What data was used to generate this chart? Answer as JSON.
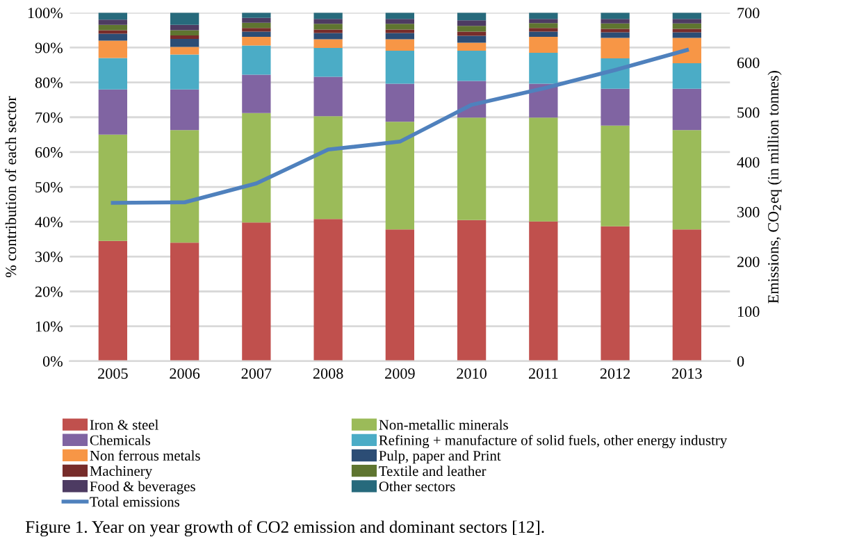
{
  "chart_data": {
    "type": "bar",
    "stacked": true,
    "categories": [
      "2005",
      "2006",
      "2007",
      "2008",
      "2009",
      "2010",
      "2011",
      "2012",
      "2013"
    ],
    "ylabel": "% contribution of each sector",
    "y2label": "Emissions, CO$_{2}$eq (in million tonnes)",
    "ylim": [
      0,
      100
    ],
    "yticks": [
      {
        "value": 0,
        "label": "0%"
      },
      {
        "value": 10,
        "label": "10%"
      },
      {
        "value": 20,
        "label": "20%"
      },
      {
        "value": 30,
        "label": "30%"
      },
      {
        "value": 40,
        "label": "40%"
      },
      {
        "value": 50,
        "label": "50%"
      },
      {
        "value": 60,
        "label": "60%"
      },
      {
        "value": 70,
        "label": "70%"
      },
      {
        "value": 80,
        "label": "80%"
      },
      {
        "value": 90,
        "label": "90%"
      },
      {
        "value": 100,
        "label": "100%"
      }
    ],
    "y2lim": [
      0,
      700
    ],
    "y2ticks": [
      0,
      100,
      200,
      300,
      400,
      500,
      600,
      700
    ],
    "grid": "y",
    "legend": "bottom",
    "series": [
      {
        "name": "Iron & steel",
        "color": "#c0504d",
        "values": [
          34.5,
          34,
          39.8,
          40.8,
          37.8,
          40.5,
          40.1,
          38.7,
          37.8
        ]
      },
      {
        "name": "Non-metallic minerals",
        "color": "#9bbb59",
        "values": [
          30.5,
          32.3,
          31.4,
          29.5,
          30.9,
          29.4,
          29.8,
          28.9,
          28.5
        ]
      },
      {
        "name": "Chemicals",
        "color": "#8064a2",
        "values": [
          13,
          11.7,
          11,
          11.3,
          10.9,
          10.5,
          9.7,
          10.6,
          11.9
        ]
      },
      {
        "name": "Refining + manufacture of solid fuels, other energy industry",
        "color": "#4bacc6",
        "values": [
          9,
          10,
          8.4,
          8.3,
          9.5,
          8.7,
          8.9,
          8.7,
          7.3
        ]
      },
      {
        "name": "Non ferrous metals",
        "color": "#f79646",
        "values": [
          5,
          2.2,
          2.5,
          2.5,
          3.3,
          2.3,
          4.6,
          5.9,
          7.3
        ]
      },
      {
        "name": "Pulp, paper and Print",
        "color": "#2c4d75",
        "values": [
          2,
          2.3,
          1.5,
          1.8,
          1.8,
          2,
          1.5,
          1.6,
          1.6
        ]
      },
      {
        "name": "Machinery",
        "color": "#772c2a",
        "values": [
          1,
          1,
          1,
          1,
          1,
          1.2,
          1,
          1,
          1
        ]
      },
      {
        "name": "Textile and leather",
        "color": "#5f7530",
        "values": [
          1.5,
          1.5,
          1.5,
          1.6,
          1.6,
          1.6,
          1.4,
          1.5,
          1.5
        ]
      },
      {
        "name": "Food & beverages",
        "color": "#4d3b62",
        "values": [
          1.5,
          1.5,
          1.4,
          1.4,
          1.4,
          1.6,
          1.2,
          1.3,
          1.3
        ]
      },
      {
        "name": "Other sectors",
        "color": "#276a7c",
        "values": [
          2,
          3.5,
          1.5,
          1.8,
          1.8,
          2.2,
          1.8,
          1.8,
          1.8
        ]
      },
      {
        "name": "Total emissions",
        "type": "line",
        "axis": "y2",
        "color": "#4f81bd",
        "values": [
          318,
          319,
          357,
          425,
          441,
          515,
          548,
          585,
          625
        ]
      }
    ],
    "annotations": [
      "Figure 1. Year on year growth of CO2 emission and dominant sectors [12]."
    ]
  }
}
